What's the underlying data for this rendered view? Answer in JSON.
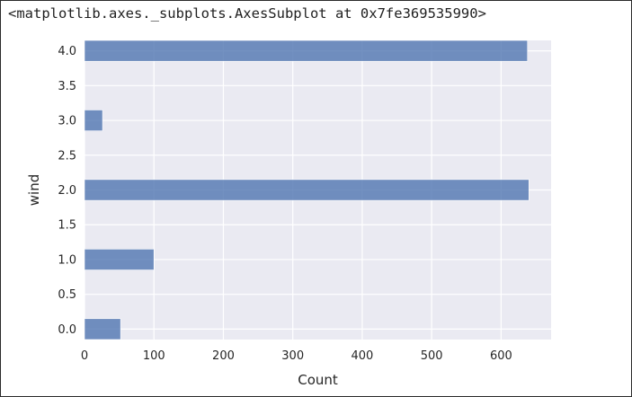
{
  "output_text": "<matplotlib.axes._subplots.AxesSubplot at 0x7fe369535990>",
  "chart_data": {
    "type": "bar",
    "orientation": "horizontal",
    "xlabel": "Count",
    "ylabel": "wind",
    "xlim": [
      0,
      672
    ],
    "ylim": [
      -0.15,
      4.15
    ],
    "x_ticks": [
      "0",
      "100",
      "200",
      "300",
      "400",
      "500",
      "600"
    ],
    "y_ticks": [
      "0.0",
      "0.5",
      "1.0",
      "1.5",
      "2.0",
      "2.5",
      "3.0",
      "3.5",
      "4.0"
    ],
    "bin_width": 0.3,
    "bars": [
      {
        "y": 0.0,
        "count": 52
      },
      {
        "y": 1.0,
        "count": 100
      },
      {
        "y": 2.0,
        "count": 640
      },
      {
        "y": 3.0,
        "count": 26
      },
      {
        "y": 4.0,
        "count": 638
      }
    ],
    "grid": true,
    "colors": {
      "background": "#eaeaf2",
      "bar": "#4c72b0",
      "grid": "#ffffff"
    }
  }
}
